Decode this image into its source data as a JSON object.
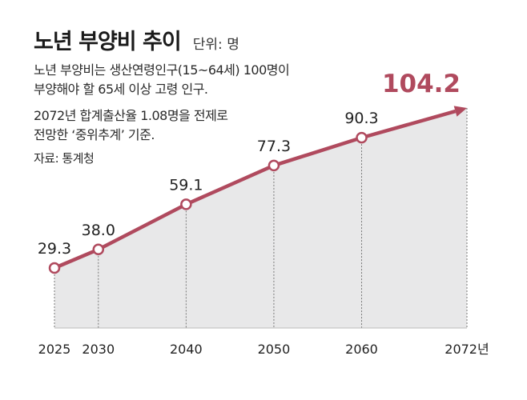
{
  "header": {
    "title": "노년 부양비 추이",
    "unit": "단위: 명",
    "desc_line1": "노년 부양비는 생산연령인구(15~64세) 100명이",
    "desc_line2": "부양해야 할 65세 이상 고령 인구.",
    "desc_line3": "2072년 합계출산율 1.08명을 전제로",
    "desc_line4": "전망한 ‘중위추계’ 기준.",
    "source": "자료: 통계청"
  },
  "colors": {
    "line": "#b04a5e",
    "area": "#e8e8e9",
    "highlight": "#b04a5e",
    "label": "#222222"
  },
  "chart_data": {
    "type": "line",
    "title": "노년 부양비 추이",
    "xlabel": "",
    "ylabel": "명",
    "categories": [
      "2025",
      "2030",
      "2040",
      "2050",
      "2060",
      "2072년"
    ],
    "series": [
      {
        "name": "노년 부양비",
        "values": [
          29.3,
          38.0,
          59.1,
          77.3,
          90.3,
          104.2
        ]
      }
    ],
    "data_labels": [
      "29.3",
      "38.0",
      "59.1",
      "77.3",
      "90.3",
      "104.2"
    ],
    "highlight_last": true,
    "grid": false
  }
}
